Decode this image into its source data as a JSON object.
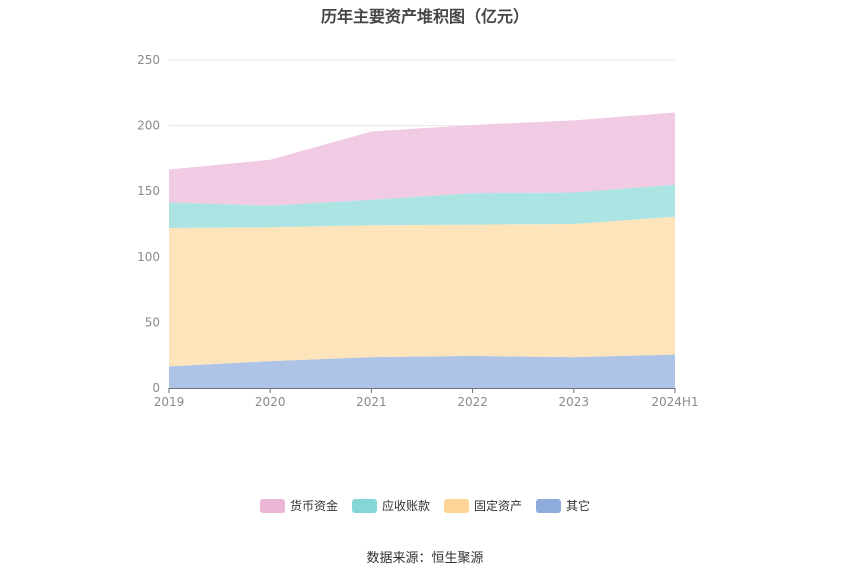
{
  "chart_data": {
    "type": "area",
    "stacked": true,
    "title": "历年主要资产堆积图（亿元）",
    "categories": [
      "2019",
      "2020",
      "2021",
      "2022",
      "2023",
      "2024H1"
    ],
    "ylim": [
      0,
      250
    ],
    "yticks": [
      0,
      50,
      100,
      150,
      200,
      250
    ],
    "grid": true,
    "legend_position": "bottom-center",
    "series": [
      {
        "name": "其它",
        "color": "#aec4e6",
        "legend_color": "#8fabdc",
        "values": [
          16.5,
          20.5,
          23.5,
          24.5,
          23.5,
          25.5
        ]
      },
      {
        "name": "固定资产",
        "color": "#fde4bb",
        "legend_color": "#fdd597",
        "values": [
          105.5,
          102,
          100.5,
          100,
          101.5,
          105
        ]
      },
      {
        "name": "应收账款",
        "color": "#ace4e4",
        "legend_color": "#85d6d6",
        "values": [
          19.5,
          16.5,
          19.5,
          24,
          24,
          24.5
        ]
      },
      {
        "name": "货币资金",
        "color": "#f0cbe3",
        "legend_color": "#ebb5d6",
        "values": [
          25,
          35,
          52,
          52,
          55,
          55
        ]
      }
    ],
    "legend_order": [
      "货币资金",
      "应收账款",
      "固定资产",
      "其它"
    ],
    "source": "数据来源：恒生聚源"
  }
}
